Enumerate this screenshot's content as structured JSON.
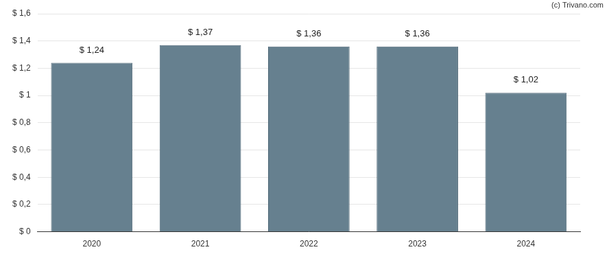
{
  "chart_data": {
    "type": "bar",
    "annotations": [
      "(c) Trivano.com"
    ],
    "categories": [
      "2020",
      "2021",
      "2022",
      "2023",
      "2024"
    ],
    "values": [
      1.24,
      1.37,
      1.36,
      1.36,
      1.02
    ],
    "value_labels": [
      "$ 1,24",
      "$ 1,37",
      "$ 1,36",
      "$ 1,36",
      "$ 1,02"
    ],
    "data_labels": true,
    "color": "#66808f",
    "ylim": [
      0,
      1.6
    ],
    "yticks": [
      {
        "value": 0,
        "label": "$ 0"
      },
      {
        "value": 0.2,
        "label": "$ 0,2"
      },
      {
        "value": 0.4,
        "label": "$ 0,4"
      },
      {
        "value": 0.6,
        "label": "$ 0,6"
      },
      {
        "value": 0.8,
        "label": "$ 0,8"
      },
      {
        "value": 1,
        "label": "$ 1"
      },
      {
        "value": 1.2,
        "label": "$ 1,2"
      },
      {
        "value": 1.4,
        "label": "$ 1,4"
      },
      {
        "value": 1.6,
        "label": "$ 1,6"
      }
    ],
    "grid": true
  }
}
